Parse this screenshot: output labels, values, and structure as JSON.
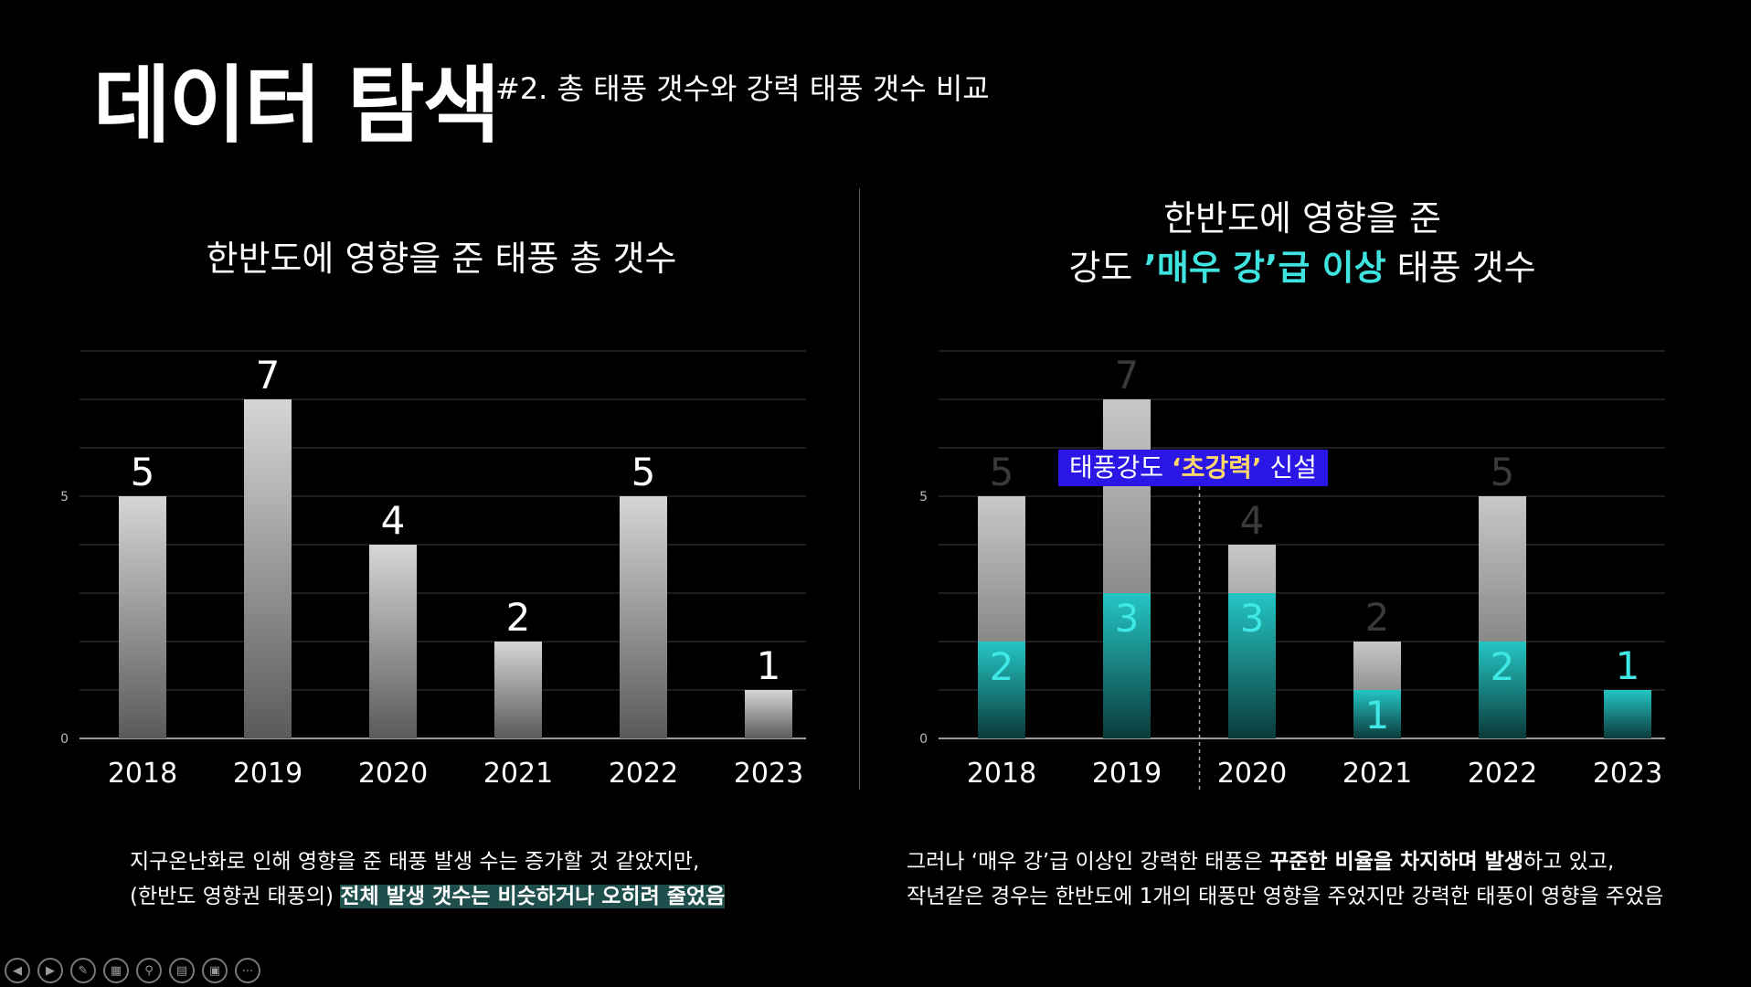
{
  "header": {
    "title": "데이터 탐색",
    "subtitle": "#2. 총 태풍 갯수와 강력 태풍 갯수 비교"
  },
  "left_chart_title": "한반도에 영향을 준 태풍 총 갯수",
  "right_chart_title": {
    "line1": "한반도에 영향을 준",
    "line2_pre": "강도 ",
    "line2_hl": "’매우 강’급 이상",
    "line2_post": " 태풍 갯수"
  },
  "notice": {
    "pre": "태풍강도 ",
    "hl": "‘초강력’",
    "post": " 신설"
  },
  "captions": {
    "left_line1": "지구온난화로 인해 영향을 준 태풍 발생 수는 증가할 것 같았지만,",
    "left_line2_pre": "(한반도 영향권 태풍의) ",
    "left_line2_hl": "전체 발생 갯수는 비슷하거나 오히려 줄었음",
    "right_line1_pre": "그러나 ‘매우 강’급 이상인 강력한 태풍은 ",
    "right_line1_hl": "꾸준한 비율을 차지하며 발생",
    "right_line1_post": "하고 있고,",
    "right_line2": "작년같은 경우는 한반도에 1개의 태풍만 영향을 주었지만 강력한 태풍이 영향을 주었음"
  },
  "toolbar": {
    "icons": [
      "prev-icon",
      "next-icon",
      "pen-icon",
      "slides-icon",
      "zoom-icon",
      "subtitle-icon",
      "camera-off-icon",
      "more-icon"
    ]
  },
  "chart_data": [
    {
      "type": "bar",
      "categories": [
        "2018",
        "2019",
        "2020",
        "2021",
        "2022",
        "2023"
      ],
      "values": [
        5,
        7,
        4,
        2,
        5,
        1
      ],
      "ylim": [
        0,
        8
      ],
      "yticks": [
        0,
        5
      ],
      "grid": true,
      "colors": {
        "top": "#d6d6d6",
        "bottom": "#5a5a5a"
      }
    },
    {
      "type": "bar",
      "categories": [
        "2018",
        "2019",
        "2020",
        "2021",
        "2022",
        "2023"
      ],
      "series": [
        {
          "values": [
            5,
            7,
            4,
            2,
            5,
            1
          ]
        },
        {
          "values": [
            2,
            3,
            3,
            1,
            2,
            1
          ]
        }
      ],
      "ylim": [
        0,
        8
      ],
      "yticks": [
        0,
        5
      ],
      "grid": true,
      "annotation_after_category": "2019",
      "colors": {
        "total_top": "#c8c8c8",
        "total_bottom": "#5e5e5e",
        "strong_top": "#24c6c4",
        "strong_bottom": "#0b3a3a",
        "strong_label": "#3fe8e5",
        "total_label": "#3a3a3a"
      }
    }
  ]
}
